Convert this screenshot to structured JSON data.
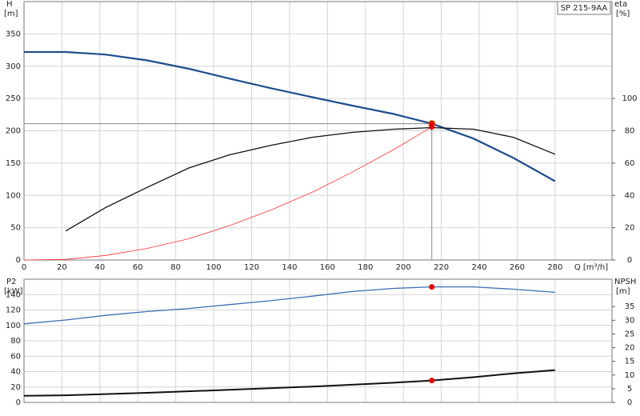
{
  "chart_data": [
    {
      "type": "line",
      "label": "SP 215-9AA",
      "ylabel": "H",
      "yunit": "[m]",
      "y2label": "eta",
      "y2unit": "[%]",
      "xlabel": "Q [m³/h]",
      "xlim": [
        0,
        310
      ],
      "xticks": [
        0,
        20,
        40,
        60,
        80,
        100,
        120,
        140,
        160,
        180,
        200,
        220,
        240,
        260,
        280
      ],
      "ylim": [
        0,
        400
      ],
      "yticks": [
        0,
        50,
        100,
        150,
        200,
        250,
        300,
        350
      ],
      "y2lim": [
        0,
        160
      ],
      "y2ticks": [
        0,
        20,
        40,
        60,
        80,
        100
      ],
      "grid": true,
      "marker_x": 215,
      "duty_point": {
        "y": 211,
        "color": "#f2c200"
      },
      "crosshair_color": "#888888",
      "series": [
        {
          "name": "H",
          "color": "#1f4e8c",
          "width": 2.2,
          "marker_color": "#e00000",
          "x": [
            0,
            22,
            43,
            65,
            87,
            108,
            130,
            152,
            173,
            195,
            215,
            237,
            258,
            280
          ],
          "values": [
            322,
            322,
            318,
            309,
            296,
            281,
            266,
            252,
            239,
            226,
            211,
            188,
            158,
            122
          ]
        },
        {
          "name": "eta",
          "color": "#111111",
          "width": 1.3,
          "axis": "y2",
          "x": [
            22,
            43,
            65,
            87,
            108,
            130,
            152,
            173,
            195,
            215,
            237,
            258,
            280
          ],
          "values": [
            18,
            32.5,
            45,
            57,
            65,
            71,
            76,
            79,
            81,
            82,
            81,
            76,
            65.5
          ]
        },
        {
          "name": "system",
          "color": "#ff3030",
          "width": 0.8,
          "marker_color": "#e00000",
          "x": [
            0,
            22,
            43,
            65,
            87,
            108,
            130,
            152,
            173,
            195,
            215
          ],
          "values": [
            0,
            1,
            7,
            18,
            33,
            53,
            77,
            105,
            136,
            171,
            206
          ]
        }
      ]
    },
    {
      "type": "line",
      "ylabel": "P2",
      "yunit": "[kW]",
      "y2label": "NPSH",
      "y2unit": "[m]",
      "xlim": [
        0,
        310
      ],
      "xticks": [
        0,
        20,
        40,
        60,
        80,
        100,
        120,
        140,
        160,
        180,
        200,
        220,
        240,
        260,
        280
      ],
      "ylim": [
        0,
        160
      ],
      "yticks": [
        0,
        20,
        40,
        60,
        80,
        100,
        120,
        140
      ],
      "y2lim": [
        0,
        45
      ],
      "y2ticks": [
        0,
        5,
        10,
        15,
        20,
        25,
        30,
        35
      ],
      "grid": true,
      "marker_x": 215,
      "series": [
        {
          "name": "P2",
          "color": "#3b6fb0",
          "width": 1.3,
          "marker_color": "#e00000",
          "x": [
            0,
            22,
            43,
            65,
            87,
            108,
            130,
            152,
            173,
            195,
            215,
            237,
            258,
            280
          ],
          "values": [
            102,
            107,
            113,
            118,
            122,
            127,
            132,
            138,
            144,
            148,
            150,
            150,
            147,
            143
          ]
        },
        {
          "name": "NPSH",
          "color": "#111111",
          "width": 2,
          "axis": "y2",
          "marker_color": "#e00000",
          "x": [
            0,
            22,
            65,
            108,
            152,
            195,
            215,
            237,
            258,
            280
          ],
          "values": [
            2.4,
            2.6,
            3.5,
            4.6,
            5.8,
            7.2,
            8,
            9.2,
            10.6,
            11.8
          ]
        }
      ]
    }
  ]
}
